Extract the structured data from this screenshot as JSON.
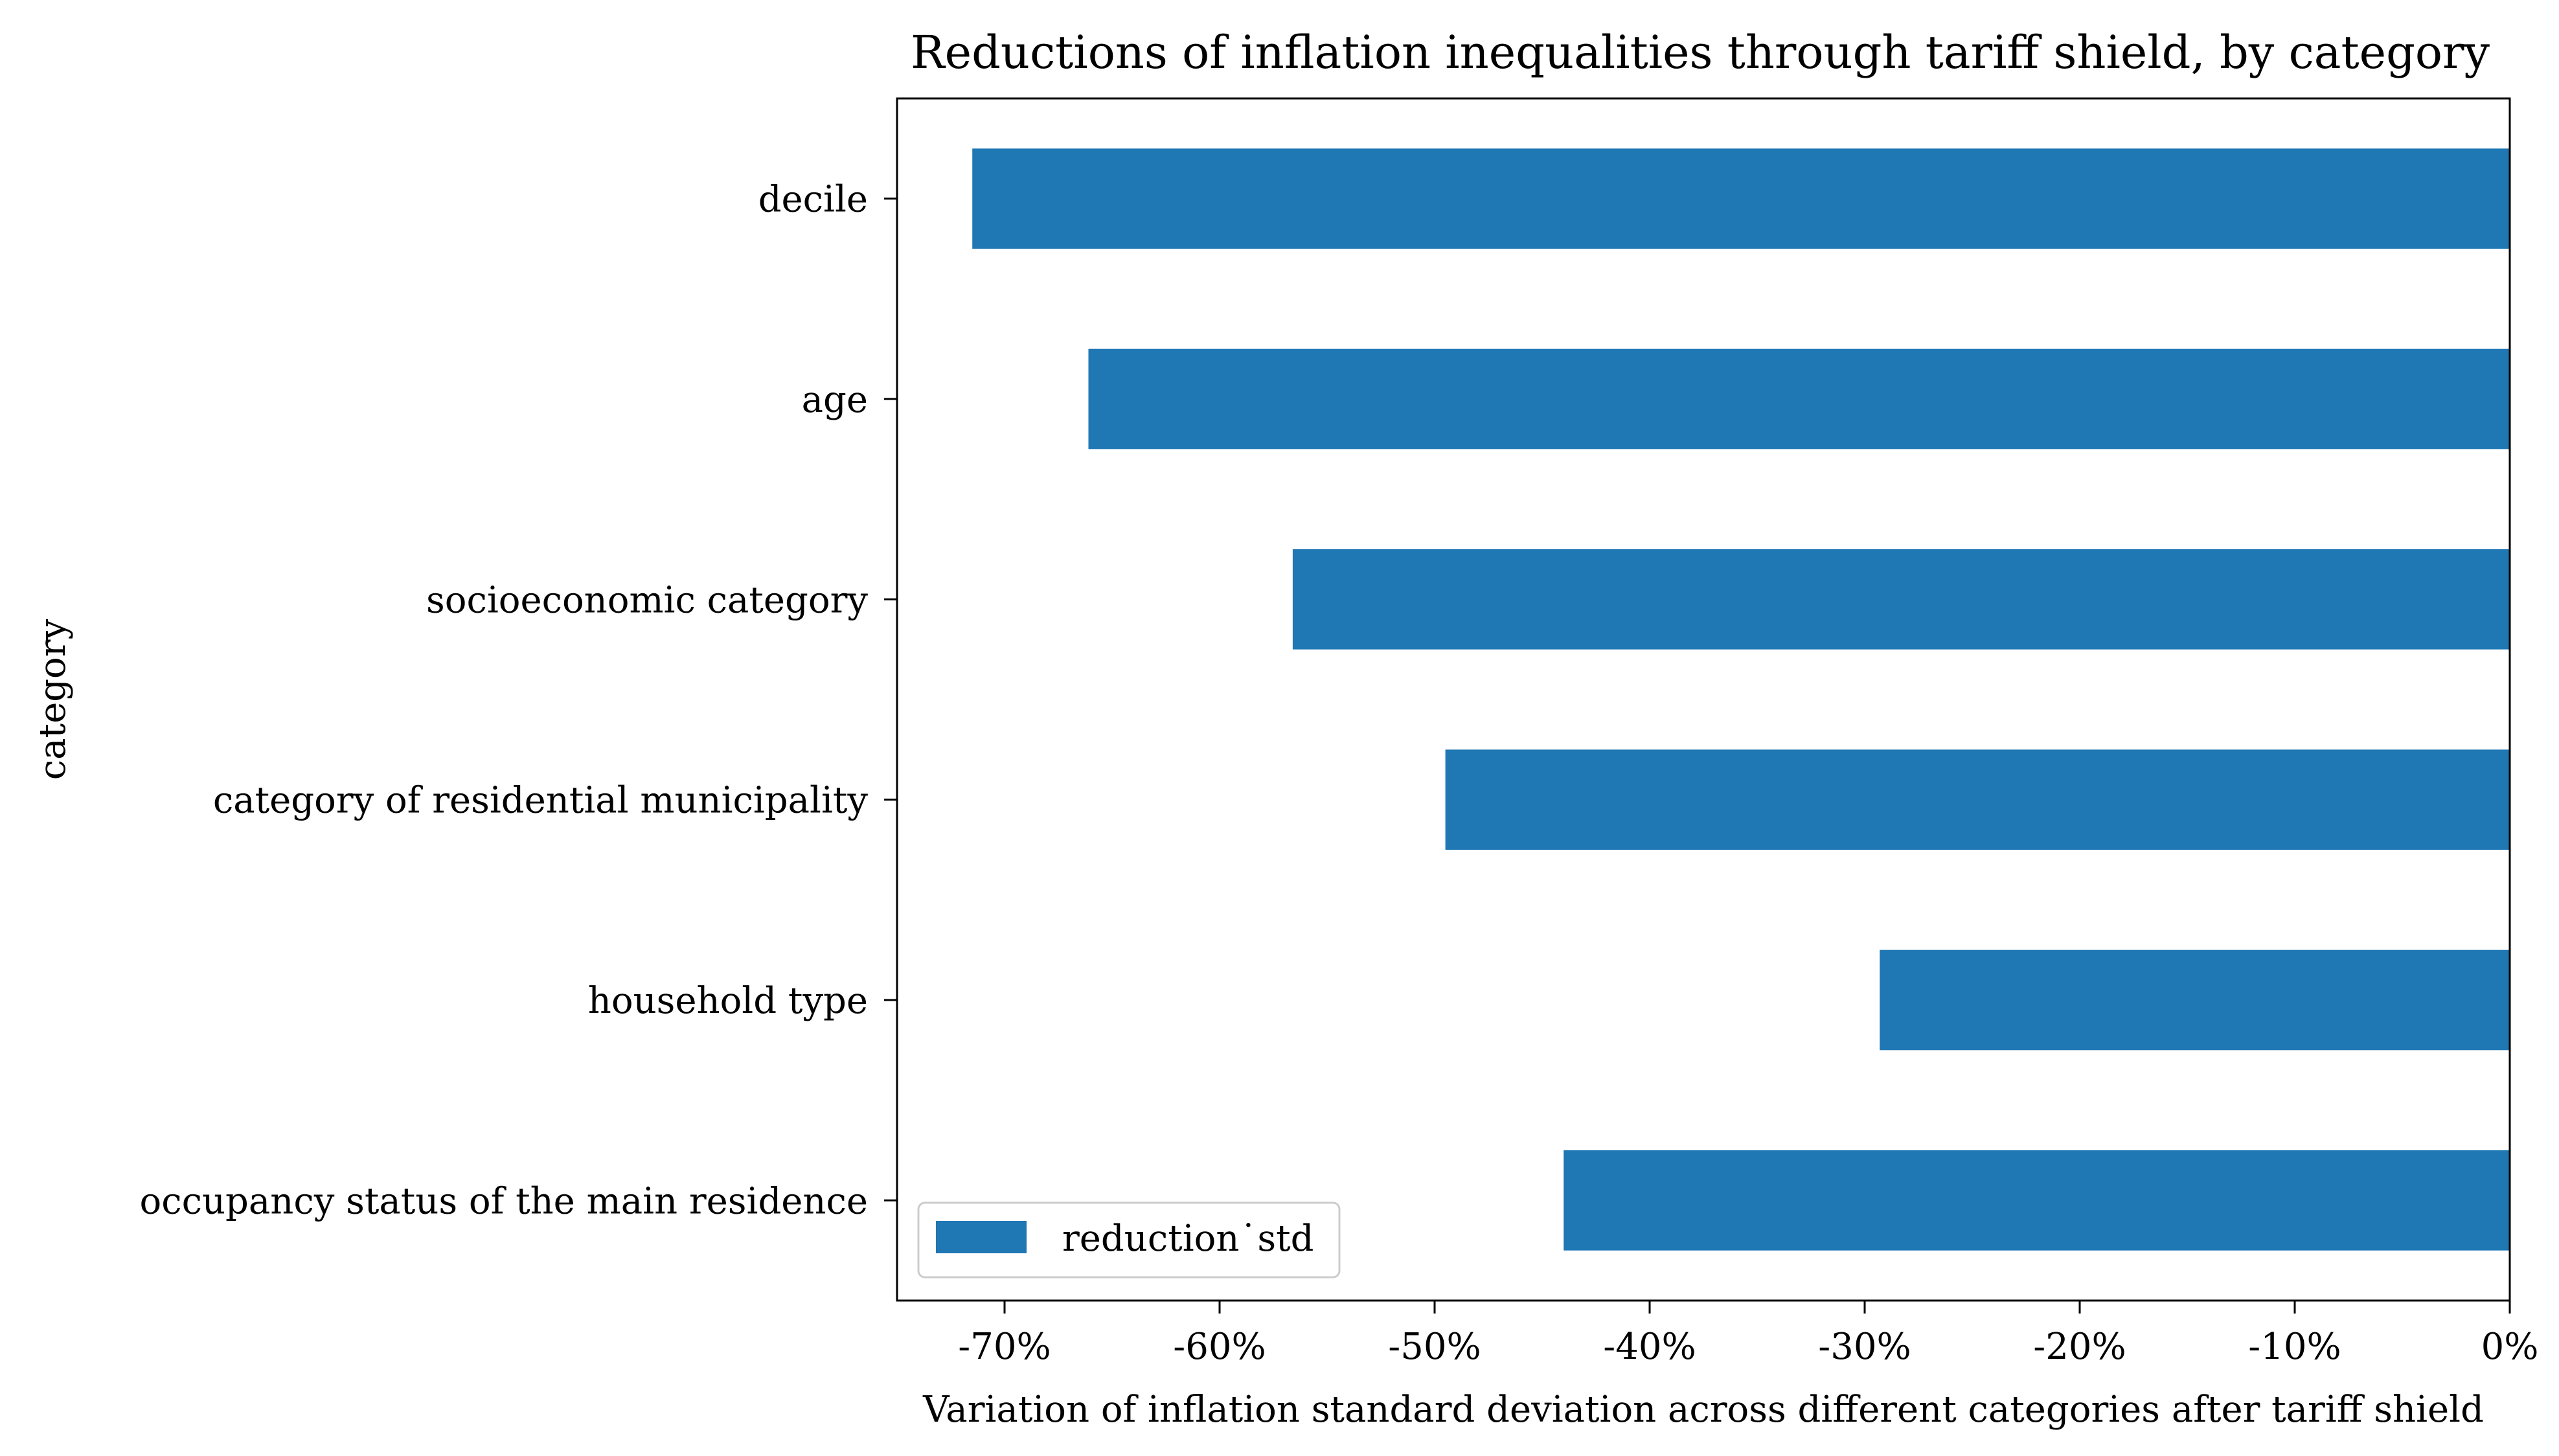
{
  "chart_data": {
    "type": "bar",
    "orientation": "horizontal",
    "title": "Reductions of inflation inequalities through tariff shield, by category",
    "xlabel": "Variation of inflation standard deviation across different categories after tariff shield",
    "ylabel": "category",
    "categories": [
      "decile",
      "age",
      "socioeconomic category",
      "category of residential municipality",
      "household type",
      "occupancy status of the main residence"
    ],
    "series": [
      {
        "name": "reduction˙std",
        "values": [
          -71.5,
          -66.1,
          -56.6,
          -49.5,
          -29.3,
          -44.0
        ],
        "color": "#1f77b4"
      }
    ],
    "xlim": [
      -75,
      0
    ],
    "xticks": [
      -70,
      -60,
      -50,
      -40,
      -30,
      -20,
      -10,
      0
    ],
    "xtick_labels": [
      "-70%",
      "-60%",
      "-50%",
      "-40%",
      "-30%",
      "-20%",
      "-10%",
      "0%"
    ],
    "legend_position": "lower-left",
    "grid": false
  }
}
